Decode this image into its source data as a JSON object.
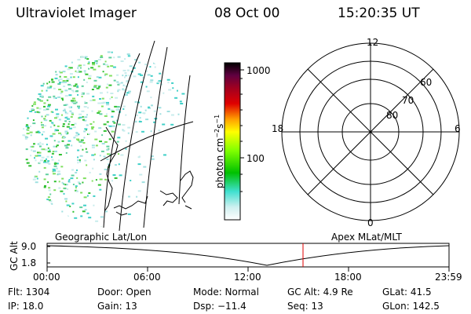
{
  "header": {
    "title": "Ultraviolet Imager",
    "date": "08 Oct 00",
    "time": "15:20:35 UT"
  },
  "colorbar": {
    "label": "photon cm",
    "label_sup1": "−2",
    "label_mid": "s",
    "label_sup2": "−1",
    "ticks": [
      {
        "label": "1000",
        "value": 1000
      },
      {
        "label": "100",
        "value": 100
      }
    ],
    "log_scale": true,
    "colors": [
      "#ffffff",
      "#40e0d0",
      "#00c000",
      "#80ff00",
      "#ffff00",
      "#ffa000",
      "#e00000",
      "#800020",
      "#300030",
      "#000000"
    ]
  },
  "polar": {
    "clock_labels": [
      "12",
      "18",
      "6",
      "0"
    ],
    "lat_labels": [
      "60",
      "70",
      "80"
    ]
  },
  "timeline": {
    "left_label": "Geographic Lat/Lon",
    "right_label": "Apex MLat/MLT",
    "axis_title": "GC Alt",
    "y_ticks": [
      "9.0",
      "1.8"
    ],
    "x_ticks": [
      "00:00",
      "06:00",
      "12:00",
      "18:00",
      "23:59"
    ],
    "current_marker_color": "#e00000"
  },
  "info": {
    "flt": "Flt: 1304",
    "ip": "IP: 18.0",
    "door": "Door: Open",
    "gain": "Gain: 13",
    "mode": "Mode: Normal",
    "dsp": "Dsp:  −11.4",
    "gcalt": "GC Alt: 4.9 Re",
    "seq": "Seq: 13",
    "glat": "GLat:  41.5",
    "glon": "GLon: 142.5"
  }
}
